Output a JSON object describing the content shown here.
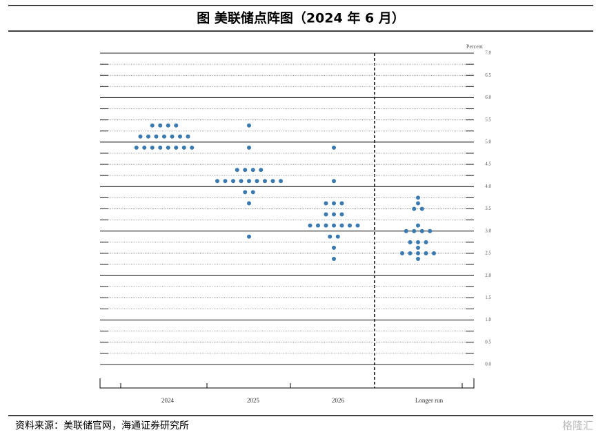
{
  "title": "图  美联储点阵图（2024 年 6 月）",
  "source": "资料来源：美联储官网，海通证券研究所",
  "watermark": "格隆汇",
  "chart_data": {
    "type": "dot",
    "y_label": "Percent",
    "categories": [
      "2024",
      "2025",
      "2026",
      "Longer run"
    ],
    "values": [
      [
        5.375,
        5.375,
        5.375,
        5.375,
        5.125,
        5.125,
        5.125,
        5.125,
        5.125,
        5.125,
        5.125,
        4.875,
        4.875,
        4.875,
        4.875,
        4.875,
        4.875,
        4.875,
        4.875
      ],
      [
        5.375,
        4.875,
        4.375,
        4.375,
        4.375,
        4.375,
        4.125,
        4.125,
        4.125,
        4.125,
        4.125,
        4.125,
        4.125,
        4.125,
        4.125,
        3.875,
        3.875,
        3.625,
        2.875
      ],
      [
        4.875,
        4.125,
        3.625,
        3.625,
        3.625,
        3.375,
        3.375,
        3.375,
        3.125,
        3.125,
        3.125,
        3.125,
        3.125,
        3.125,
        3.125,
        2.875,
        2.875,
        2.625,
        2.375
      ],
      [
        3.75,
        3.625,
        3.5,
        3.5,
        3.125,
        3.0,
        3.0,
        3.0,
        3.0,
        2.75,
        2.75,
        2.75,
        2.625,
        2.5,
        2.5,
        2.5,
        2.5,
        2.5,
        2.375
      ]
    ],
    "color": "#3a7ab0",
    "ylim": [
      0,
      7
    ],
    "yticks": [
      {
        "value": 0,
        "label": "0.0"
      },
      0.5,
      {
        "value": 1,
        "label": "1.0"
      },
      1.5,
      {
        "value": 2,
        "label": "2.0"
      },
      2.5,
      {
        "value": 3,
        "label": "3.0"
      },
      3.5,
      {
        "value": 4,
        "label": "4.0"
      },
      4.5,
      {
        "value": 5,
        "label": "5.0"
      },
      5.5,
      {
        "value": 6,
        "label": "6.0"
      },
      6.5,
      {
        "value": 7,
        "label": "7.0"
      }
    ],
    "minor_yticks": [
      0.25,
      0.75,
      1.25,
      1.75,
      2.25,
      2.75,
      3.25,
      3.75,
      4.25,
      4.75,
      5.25,
      5.75,
      6.25,
      6.75
    ]
  }
}
